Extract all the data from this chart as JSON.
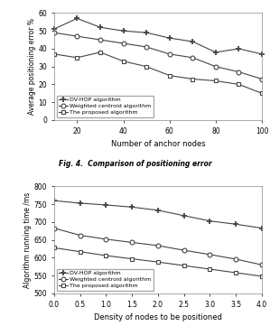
{
  "chart1": {
    "xlabel": "Number of anchor nodes",
    "ylabel": "Average positioning error %",
    "xlim": [
      10,
      100
    ],
    "ylim": [
      0,
      60
    ],
    "xticks": [
      20,
      40,
      60,
      80,
      100
    ],
    "yticks": [
      0,
      10,
      20,
      30,
      40,
      50,
      60
    ],
    "x": [
      10,
      20,
      30,
      40,
      50,
      60,
      70,
      80,
      90,
      100
    ],
    "dv_hop": [
      51,
      57,
      52,
      50,
      49,
      46,
      44,
      38,
      40,
      37
    ],
    "weighted": [
      49,
      47,
      45,
      43,
      41,
      37,
      35,
      30,
      27,
      23
    ],
    "proposed": [
      37,
      35,
      38,
      33,
      30,
      25,
      23,
      22,
      20,
      15
    ],
    "legend": [
      "DV-HOP algorithm",
      "Weighted centroid algorithm",
      "The proposed algorithm"
    ],
    "caption": "Fig. 4.  Comparison of positioning error"
  },
  "chart2": {
    "xlabel": "Density of nodes to be positioned",
    "ylabel": "Algorithm running time /ms",
    "xlim": [
      0,
      4.0
    ],
    "ylim": [
      500,
      800
    ],
    "xticks": [
      0,
      0.5,
      1.0,
      1.5,
      2.0,
      2.5,
      3.0,
      3.5,
      4.0
    ],
    "yticks": [
      500,
      550,
      600,
      650,
      700,
      750,
      800
    ],
    "x": [
      0,
      0.5,
      1.0,
      1.5,
      2.0,
      2.5,
      3.0,
      3.5,
      4.0
    ],
    "dv_hop": [
      760,
      753,
      748,
      742,
      733,
      718,
      703,
      694,
      683
    ],
    "weighted": [
      683,
      663,
      652,
      643,
      634,
      621,
      609,
      596,
      580
    ],
    "proposed": [
      628,
      617,
      606,
      597,
      588,
      578,
      568,
      558,
      548
    ],
    "legend": [
      "DV-HOP algorithm",
      "Weighted centroid algorithm",
      "The proposed algorithm"
    ]
  },
  "bg_color": "#ffffff",
  "line_color": "#444444",
  "marker_dv": "+",
  "marker_weighted": "o",
  "marker_proposed": "s"
}
